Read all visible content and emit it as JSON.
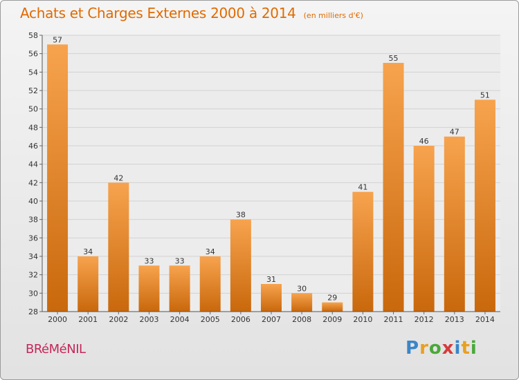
{
  "header": {
    "title": "Achats et Charges Externes 2000 à 2014",
    "unit": "(en milliers d'€)"
  },
  "footer": {
    "town": "BRéMéNIL",
    "logo": {
      "letters": [
        "P",
        "r",
        "o",
        "x",
        "i",
        "t",
        "i"
      ],
      "colors": [
        "#3a86c8",
        "#e8a020",
        "#4aa83a",
        "#d63a3a",
        "#3a86c8",
        "#e8a020",
        "#4aa83a"
      ]
    }
  },
  "colors": {
    "bar_light": "#f7a34e",
    "bar_dark": "#c9680c",
    "title": "#e06a00",
    "town": "#c4285a"
  },
  "chart_data": {
    "type": "bar",
    "title": "Achats et Charges Externes 2000 à 2014",
    "ylabel": "",
    "xlabel": "",
    "categories": [
      "2000",
      "2001",
      "2002",
      "2003",
      "2004",
      "2005",
      "2006",
      "2007",
      "2008",
      "2009",
      "2010",
      "2011",
      "2012",
      "2013",
      "2014"
    ],
    "values": [
      57,
      34,
      42,
      33,
      33,
      34,
      38,
      31,
      30,
      29,
      41,
      55,
      46,
      47,
      51
    ],
    "ylim": [
      28,
      58
    ],
    "yticks": [
      28,
      30,
      32,
      34,
      36,
      38,
      40,
      42,
      44,
      46,
      48,
      50,
      52,
      54,
      56,
      58
    ],
    "grid": true,
    "legend": "none"
  }
}
